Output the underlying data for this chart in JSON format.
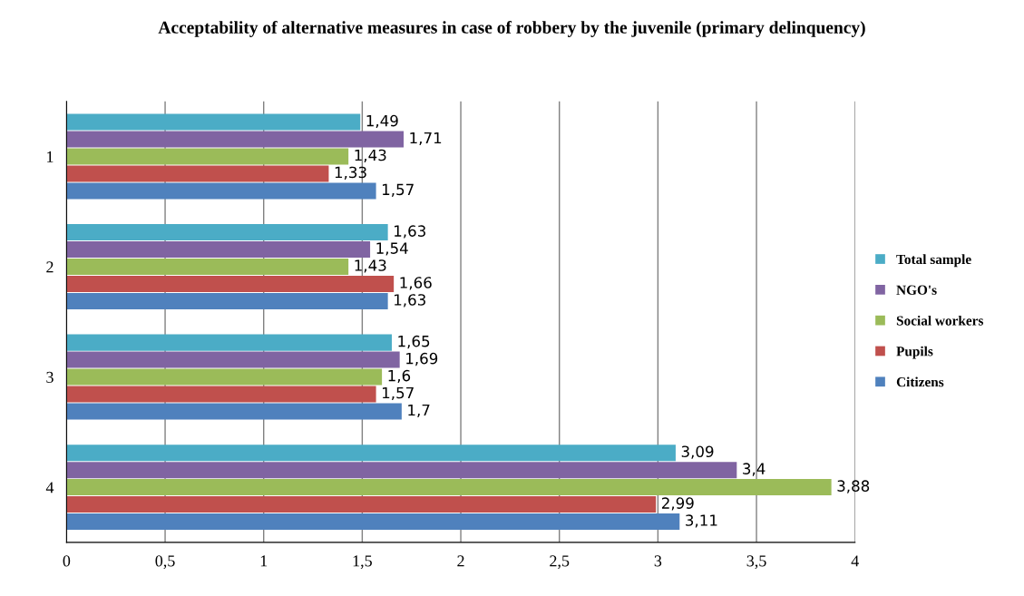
{
  "chart_data": {
    "type": "bar",
    "orientation": "horizontal",
    "title": "Acceptability of alternative measures in case of robbery by the juvenile (primary delinquency)",
    "categories": [
      "1",
      "2",
      "3",
      "4"
    ],
    "series": [
      {
        "name": "Citizens",
        "color": "#4f81bd",
        "values": [
          1.57,
          1.63,
          1.7,
          3.11
        ],
        "value_labels": [
          "1,57",
          "1,63",
          "1,7",
          "3,11"
        ]
      },
      {
        "name": "Pupils",
        "color": "#c0504d",
        "values": [
          1.33,
          1.66,
          1.57,
          2.99
        ],
        "value_labels": [
          "1,33",
          "1,66",
          "1,57",
          "2,99"
        ]
      },
      {
        "name": "Social workers",
        "color": "#9bbb59",
        "values": [
          1.43,
          1.43,
          1.6,
          3.88
        ],
        "value_labels": [
          "1,43",
          "1,43",
          "1,6",
          "3,88"
        ]
      },
      {
        "name": "NGO's",
        "color": "#8064a2",
        "values": [
          1.71,
          1.54,
          1.69,
          3.4
        ],
        "value_labels": [
          "1,71",
          "1,54",
          "1,69",
          "3,4"
        ]
      },
      {
        "name": "Total sample",
        "color": "#4bacc6",
        "values": [
          1.49,
          1.63,
          1.65,
          3.09
        ],
        "value_labels": [
          "1,49",
          "1,63",
          "1,65",
          "3,09"
        ]
      }
    ],
    "xlim": [
      0,
      4
    ],
    "xticks": [
      0,
      {
        "value": 0.5,
        "label": "0,5"
      },
      1,
      {
        "value": 1.5,
        "label": "1,5"
      },
      2,
      {
        "value": 2.5,
        "label": "2,5"
      },
      3,
      {
        "value": 3.5,
        "label": "3,5"
      },
      4
    ],
    "grid": "x",
    "legend": "right"
  }
}
